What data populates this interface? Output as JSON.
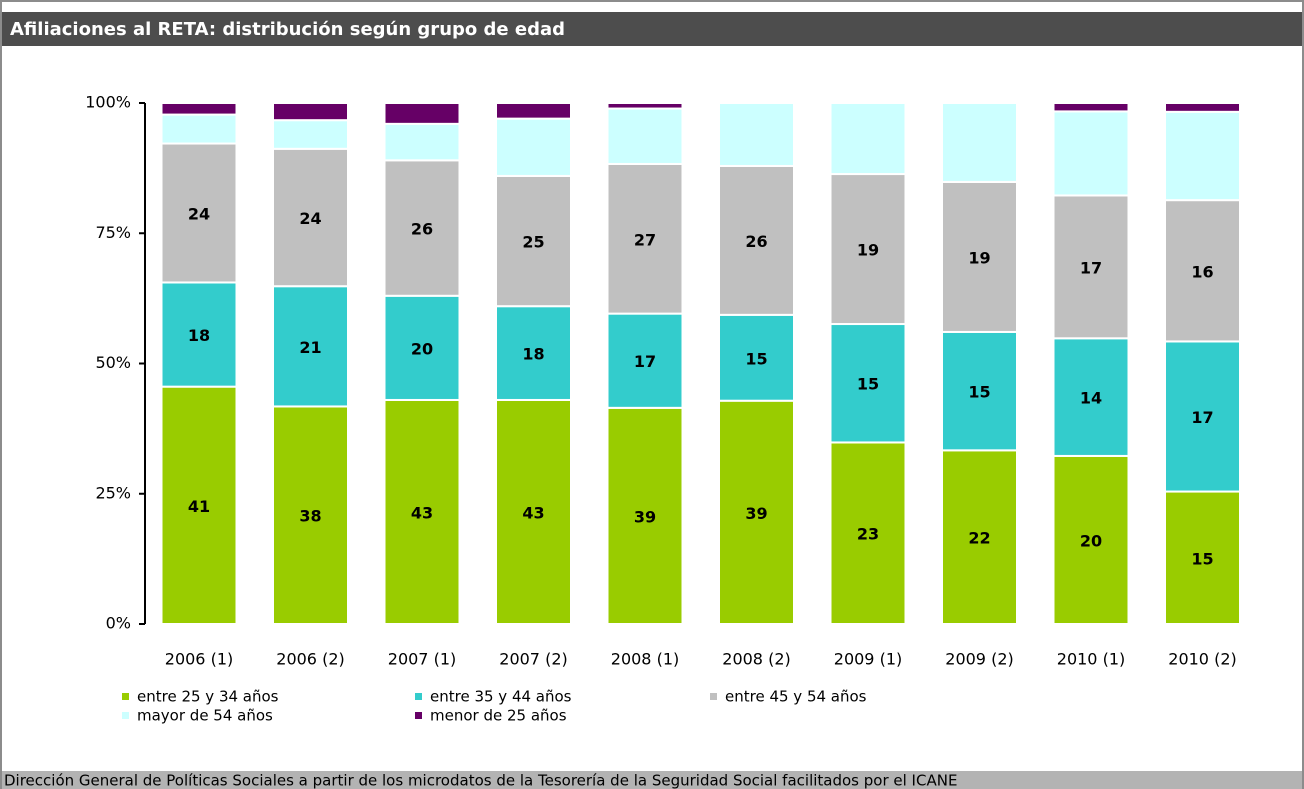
{
  "chart_data": {
    "type": "bar",
    "stacking": "percent",
    "title": "Afiliaciones al RETA: distribución según grupo de edad",
    "source": "Dirección General de Políticas Sociales a partir de los microdatos de la Tesorería de la Seguridad Social facilitados por el ICANE",
    "categories": [
      "2006 (1)",
      "2006 (2)",
      "2007 (1)",
      "2007 (2)",
      "2008 (1)",
      "2008 (2)",
      "2009 (1)",
      "2009 (2)",
      "2010 (1)",
      "2010 (2)"
    ],
    "series": [
      {
        "name": "entre 25 y 34 años",
        "color": "#99cc00",
        "values": [
          41,
          38,
          43,
          43,
          39,
          39,
          23,
          22,
          20,
          15
        ]
      },
      {
        "name": "entre 35 y 44 años",
        "color": "#33cccc",
        "values": [
          18,
          21,
          20,
          18,
          17,
          15,
          15,
          15,
          14,
          17
        ]
      },
      {
        "name": "entre 45 y 54 años",
        "color": "#c0c0c0",
        "values": [
          24,
          24,
          26,
          25,
          27,
          26,
          19,
          19,
          17,
          16
        ]
      },
      {
        "name": "mayor de 54 años",
        "color": "#ccffff",
        "values": [
          5,
          5,
          7,
          11,
          10,
          11,
          9,
          10,
          10,
          10
        ]
      },
      {
        "name": "menor de 25 años",
        "color": "#660066",
        "values": [
          2,
          3,
          4,
          3,
          1,
          0,
          0,
          0,
          1,
          1
        ]
      }
    ],
    "ylim": [
      0,
      100
    ],
    "yticks": [
      {
        "value": 0,
        "label": "0%"
      },
      {
        "value": 25,
        "label": "25%"
      },
      {
        "value": 50,
        "label": "50%"
      },
      {
        "value": 75,
        "label": "75%"
      },
      {
        "value": 100,
        "label": "100%"
      }
    ]
  }
}
